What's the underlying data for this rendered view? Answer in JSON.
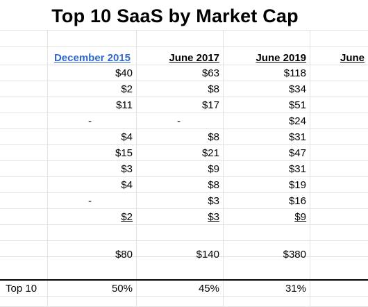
{
  "title": "Top 10 SaaS by Market Cap",
  "headers": [
    "December 2015",
    "June 2017",
    "June 2019",
    "June"
  ],
  "rows": [
    {
      "dec2015": "$40",
      "jun2017": "$63",
      "jun2019": "$118"
    },
    {
      "dec2015": "$2",
      "jun2017": "$8",
      "jun2019": "$34"
    },
    {
      "dec2015": "$11",
      "jun2017": "$17",
      "jun2019": "$51"
    },
    {
      "dec2015": "-",
      "jun2017": "-",
      "jun2019": "$24"
    },
    {
      "dec2015": "$4",
      "jun2017": "$8",
      "jun2019": "$31"
    },
    {
      "dec2015": "$15",
      "jun2017": "$21",
      "jun2019": "$47"
    },
    {
      "dec2015": "$3",
      "jun2017": "$9",
      "jun2019": "$31"
    },
    {
      "dec2015": "$4",
      "jun2017": "$8",
      "jun2019": "$19"
    },
    {
      "dec2015": "-",
      "jun2017": "$3",
      "jun2019": "$16"
    },
    {
      "dec2015": "$2",
      "jun2017": "$3",
      "jun2019": "$9"
    }
  ],
  "total": {
    "dec2015": "$80",
    "jun2017": "$140",
    "jun2019": "$380"
  },
  "share": {
    "label": "Top 10",
    "dec2015": "50%",
    "jun2017": "45%",
    "jun2019": "31%"
  },
  "colors": {
    "link": "#3267c9",
    "grid": "#e2e2e2",
    "text": "#000000"
  }
}
